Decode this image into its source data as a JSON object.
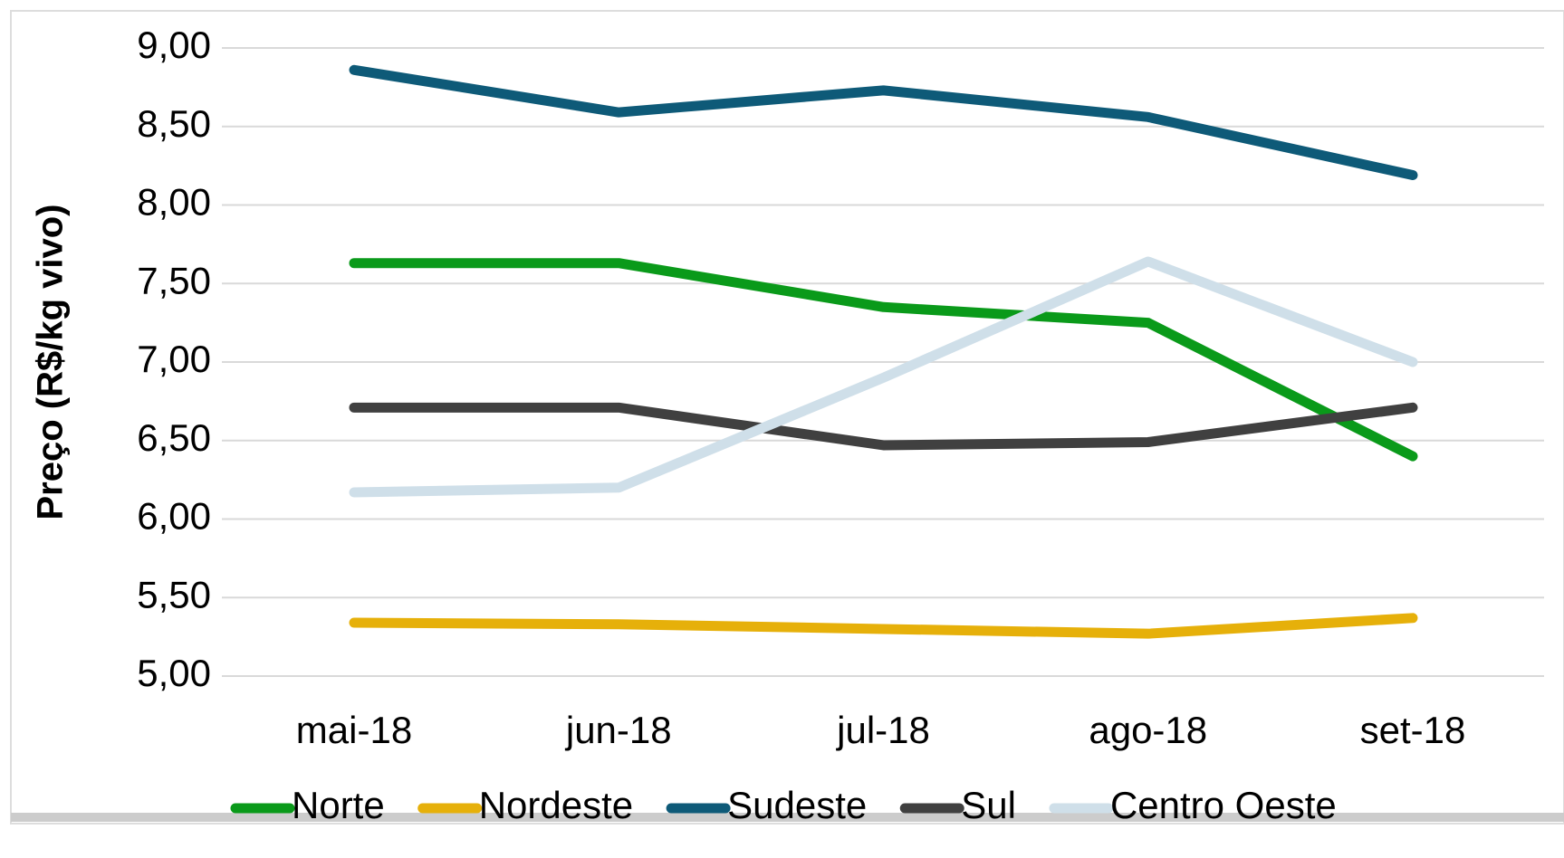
{
  "chart_data": {
    "type": "line",
    "y_label": "Preço (R$/kg vivo)",
    "categories": [
      "mai-18",
      "jun-18",
      "jul-18",
      "ago-18",
      "set-18"
    ],
    "series": [
      {
        "name": "Norte",
        "color": "#0a9a1a",
        "values": [
          7.63,
          7.63,
          7.35,
          7.25,
          6.4
        ]
      },
      {
        "name": "Nordeste",
        "color": "#e6b00a",
        "values": [
          5.34,
          5.33,
          5.3,
          5.27,
          5.37
        ]
      },
      {
        "name": "Sudeste",
        "color": "#0e5a78",
        "values": [
          8.86,
          8.59,
          8.73,
          8.56,
          8.19
        ]
      },
      {
        "name": "Sul",
        "color": "#404040",
        "values": [
          6.71,
          6.71,
          6.47,
          6.49,
          6.71
        ]
      },
      {
        "name": "Centro Oeste",
        "color": "#cfdfe9",
        "values": [
          6.17,
          6.2,
          6.9,
          7.64,
          7.0
        ]
      }
    ],
    "ylim": [
      5,
      9
    ],
    "yticks": [
      {
        "value": 5,
        "label": "5,00"
      },
      {
        "value": 5.5,
        "label": "5,50"
      },
      {
        "value": 6,
        "label": "6,00"
      },
      {
        "value": 6.5,
        "label": "6,50"
      },
      {
        "value": 7,
        "label": "7,00"
      },
      {
        "value": 7.5,
        "label": "7,50"
      },
      {
        "value": 8,
        "label": "8,00"
      },
      {
        "value": 8.5,
        "label": "8,50"
      },
      {
        "value": 9,
        "label": "9,00"
      }
    ],
    "grid": true,
    "legend": "bottom"
  }
}
